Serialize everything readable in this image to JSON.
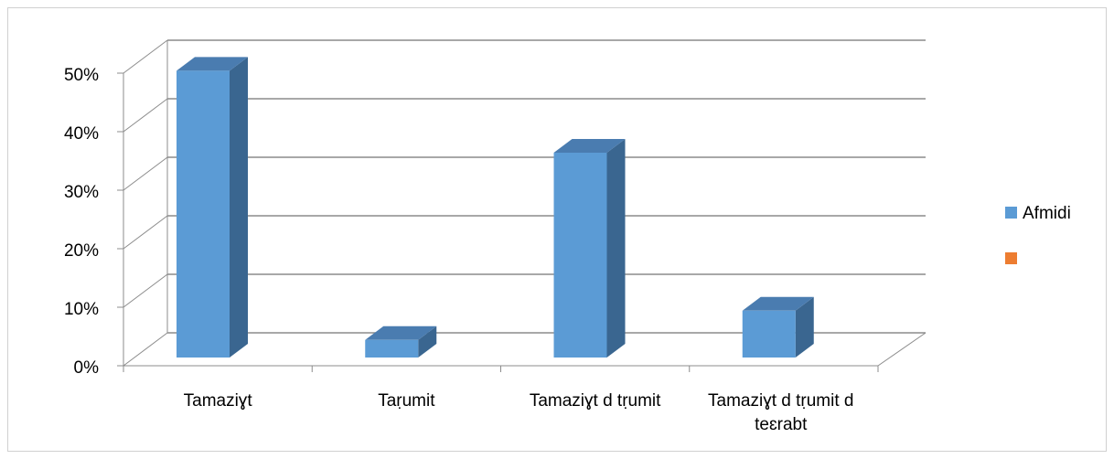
{
  "chart_data": {
    "type": "bar3d",
    "categories": [
      "Tamaziɣt",
      "Taṛumit",
      "Tamaziɣt d tṛumit",
      "Tamaziɣt d tṛumit d teɛrabt"
    ],
    "series": [
      {
        "name": "Afmidi",
        "color": "#5b9bd5",
        "values": [
          49,
          3,
          35,
          8
        ]
      },
      {
        "color": "#ed7d31",
        "values": [
          null,
          null,
          null,
          null
        ]
      }
    ],
    "ylim": [
      0,
      50
    ],
    "yticks": [
      {
        "value": 0,
        "label": "0%"
      },
      {
        "value": 10,
        "label": "10%"
      },
      {
        "value": 20,
        "label": "20%"
      },
      {
        "value": 30,
        "label": "30%"
      },
      {
        "value": 40,
        "label": "40%"
      },
      {
        "value": 50,
        "label": "50%"
      }
    ],
    "grid": true,
    "legend": "right"
  }
}
